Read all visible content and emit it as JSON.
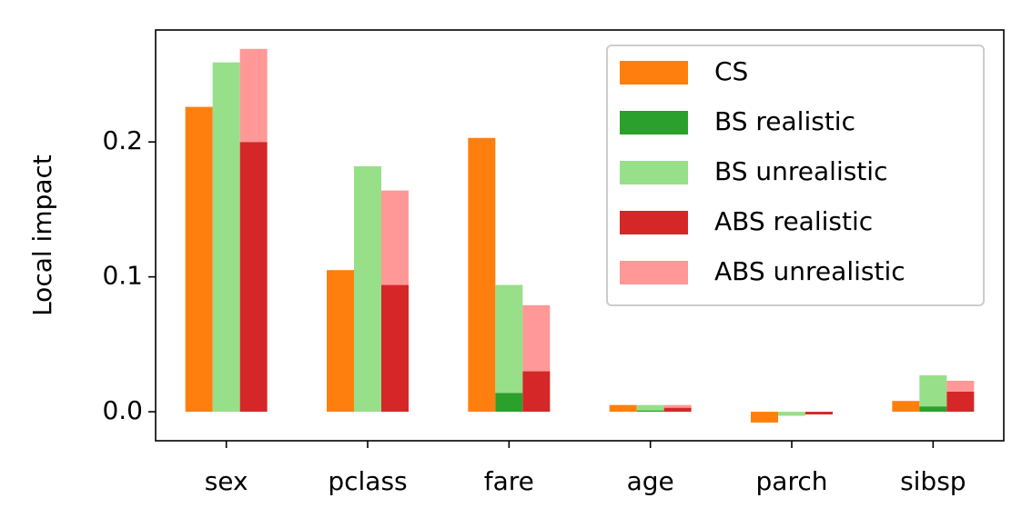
{
  "chart_data": {
    "type": "bar",
    "y_label": "Local impact",
    "categories": [
      "sex",
      "pclass",
      "fare",
      "age",
      "parch",
      "sibsp"
    ],
    "series": [
      {
        "name": "CS",
        "color": "#ff7f0e",
        "values": [
          0.226,
          0.105,
          0.203,
          0.005,
          -0.008,
          0.008
        ]
      },
      {
        "name": "BS realistic",
        "color": "#2ca02c",
        "values": [
          0,
          0,
          0.014,
          0.001,
          0,
          0.004
        ]
      },
      {
        "name": "BS unrealistic",
        "color": "#98df8a",
        "values": [
          0.259,
          0.182,
          0.08,
          0.004,
          -0.003,
          0.023
        ]
      },
      {
        "name": "ABS realistic",
        "color": "#d62728",
        "values": [
          0.2,
          0.094,
          0.03,
          0.003,
          -0.002,
          0.015
        ]
      },
      {
        "name": "ABS unrealistic",
        "color": "#ff9896",
        "values": [
          0.069,
          0.07,
          0.049,
          0.002,
          0,
          0.008
        ]
      }
    ],
    "ylim": [
      -0.0215,
      0.283
    ],
    "yticks": [
      {
        "value": 0,
        "label": "0.0"
      },
      0.1,
      0.2
    ],
    "grid": false,
    "legend": "upper right"
  }
}
